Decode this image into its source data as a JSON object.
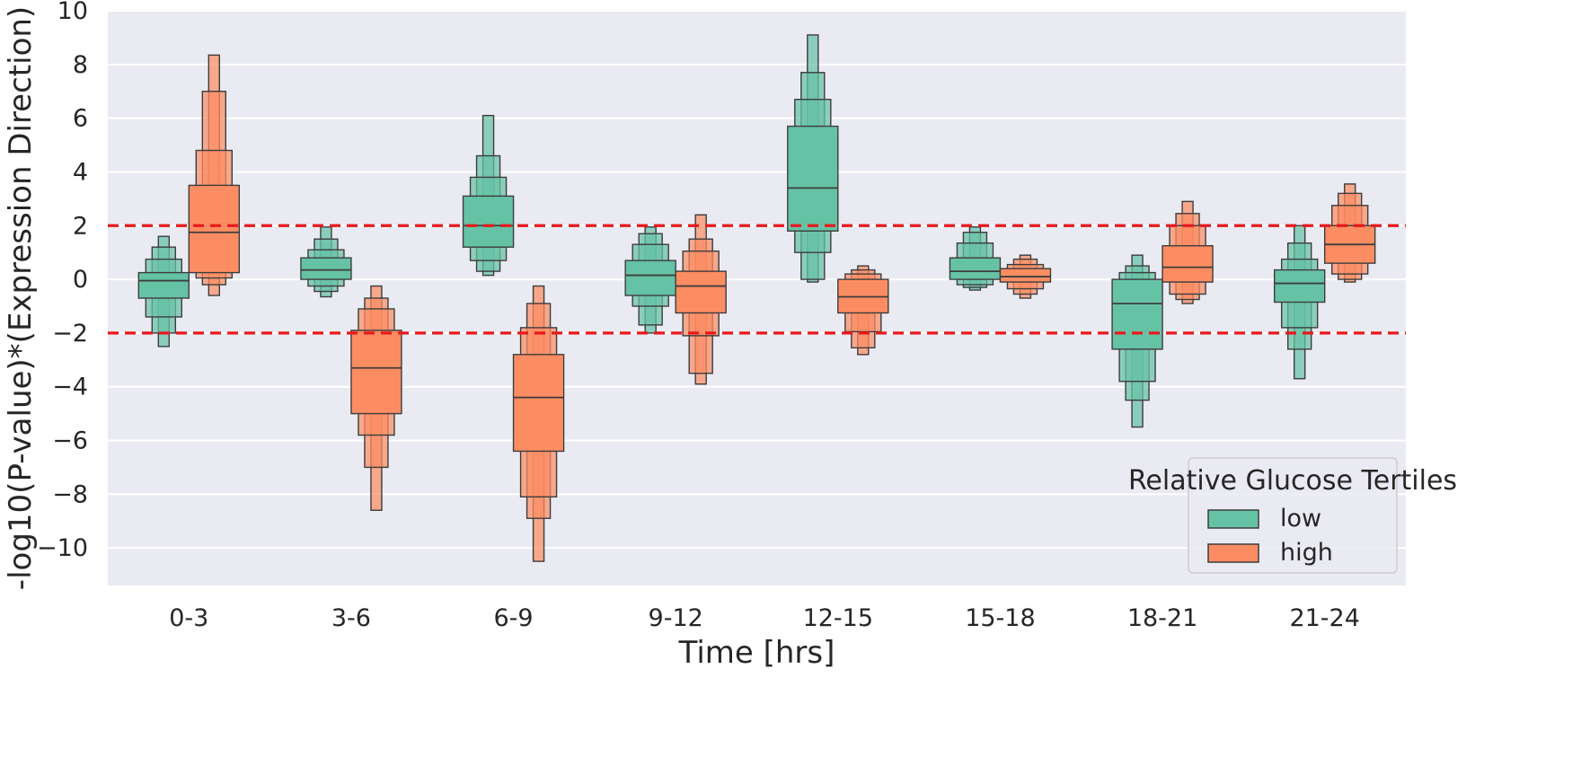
{
  "chart_data": {
    "type": "boxenplot",
    "title": "",
    "xlabel": "Time [hrs]",
    "ylabel": "-log10(P-value)*(Expression Direction)",
    "categories": [
      "0-3",
      "3-6",
      "6-9",
      "9-12",
      "12-15",
      "15-18",
      "18-21",
      "21-24"
    ],
    "ylim": [
      -11.4,
      10
    ],
    "yticks": [
      10,
      8,
      6,
      4,
      2,
      0,
      -2,
      -4,
      -6,
      -8,
      -10
    ],
    "ytick_labels": [
      "10",
      "8",
      "6",
      "4",
      "2",
      "0",
      "−2",
      "−4",
      "−6",
      "−8",
      "−10"
    ],
    "grid": true,
    "threshold_lines": [
      2,
      -2
    ],
    "legend": {
      "title": "Relative Glucose Tertiles",
      "position": "lower-right"
    },
    "series": [
      {
        "name": "low",
        "color": "#66c2a5",
        "boxes": [
          {
            "median": -0.05,
            "levels": [
              [
                -0.7,
                0.25
              ],
              [
                -1.4,
                0.75
              ],
              [
                -2.0,
                1.2
              ],
              [
                -2.5,
                1.6
              ]
            ]
          },
          {
            "median": 0.35,
            "levels": [
              [
                0.0,
                0.8
              ],
              [
                -0.25,
                1.1
              ],
              [
                -0.45,
                1.5
              ],
              [
                -0.65,
                1.95
              ]
            ]
          },
          {
            "median": 2.0,
            "levels": [
              [
                1.2,
                3.1
              ],
              [
                0.7,
                3.8
              ],
              [
                0.3,
                4.6
              ],
              [
                0.15,
                6.1
              ]
            ]
          },
          {
            "median": 0.15,
            "levels": [
              [
                -0.6,
                0.7
              ],
              [
                -1.0,
                1.3
              ],
              [
                -1.7,
                1.7
              ],
              [
                -2.0,
                1.95
              ]
            ]
          },
          {
            "median": 3.4,
            "levels": [
              [
                1.8,
                5.7
              ],
              [
                1.0,
                6.7
              ],
              [
                0.0,
                7.7
              ],
              [
                -0.1,
                9.1
              ]
            ]
          },
          {
            "median": 0.3,
            "levels": [
              [
                0.0,
                0.8
              ],
              [
                -0.2,
                1.35
              ],
              [
                -0.3,
                1.75
              ],
              [
                -0.4,
                1.95
              ]
            ]
          },
          {
            "median": -0.9,
            "levels": [
              [
                -2.6,
                0.0
              ],
              [
                -3.8,
                0.25
              ],
              [
                -4.5,
                0.5
              ],
              [
                -5.5,
                0.9
              ]
            ]
          },
          {
            "median": -0.15,
            "levels": [
              [
                -0.85,
                0.35
              ],
              [
                -1.8,
                0.75
              ],
              [
                -2.6,
                1.35
              ],
              [
                -3.7,
                2.0
              ]
            ]
          }
        ]
      },
      {
        "name": "high",
        "color": "#fc8d62",
        "boxes": [
          {
            "median": 1.75,
            "levels": [
              [
                0.25,
                3.5
              ],
              [
                0.05,
                4.8
              ],
              [
                -0.2,
                7.0
              ],
              [
                -0.6,
                8.35
              ]
            ]
          },
          {
            "median": -3.3,
            "levels": [
              [
                -5.0,
                -1.9
              ],
              [
                -5.8,
                -1.1
              ],
              [
                -7.0,
                -0.7
              ],
              [
                -8.6,
                -0.25
              ]
            ]
          },
          {
            "median": -4.4,
            "levels": [
              [
                -6.4,
                -2.8
              ],
              [
                -8.1,
                -1.8
              ],
              [
                -8.9,
                -0.9
              ],
              [
                -10.5,
                -0.25
              ]
            ]
          },
          {
            "median": -0.25,
            "levels": [
              [
                -1.25,
                0.3
              ],
              [
                -2.1,
                1.05
              ],
              [
                -3.5,
                1.5
              ],
              [
                -3.9,
                2.4
              ]
            ]
          },
          {
            "median": -0.65,
            "levels": [
              [
                -1.25,
                0.0
              ],
              [
                -1.95,
                0.2
              ],
              [
                -2.55,
                0.35
              ],
              [
                -2.8,
                0.5
              ]
            ]
          },
          {
            "median": 0.1,
            "levels": [
              [
                -0.1,
                0.4
              ],
              [
                -0.35,
                0.55
              ],
              [
                -0.55,
                0.75
              ],
              [
                -0.7,
                0.9
              ]
            ]
          },
          {
            "median": 0.45,
            "levels": [
              [
                -0.1,
                1.25
              ],
              [
                -0.55,
                2.0
              ],
              [
                -0.75,
                2.45
              ],
              [
                -0.9,
                2.9
              ]
            ]
          },
          {
            "median": 1.3,
            "levels": [
              [
                0.6,
                2.0
              ],
              [
                0.2,
                2.75
              ],
              [
                0.0,
                3.2
              ],
              [
                -0.1,
                3.55
              ]
            ]
          }
        ]
      }
    ]
  }
}
